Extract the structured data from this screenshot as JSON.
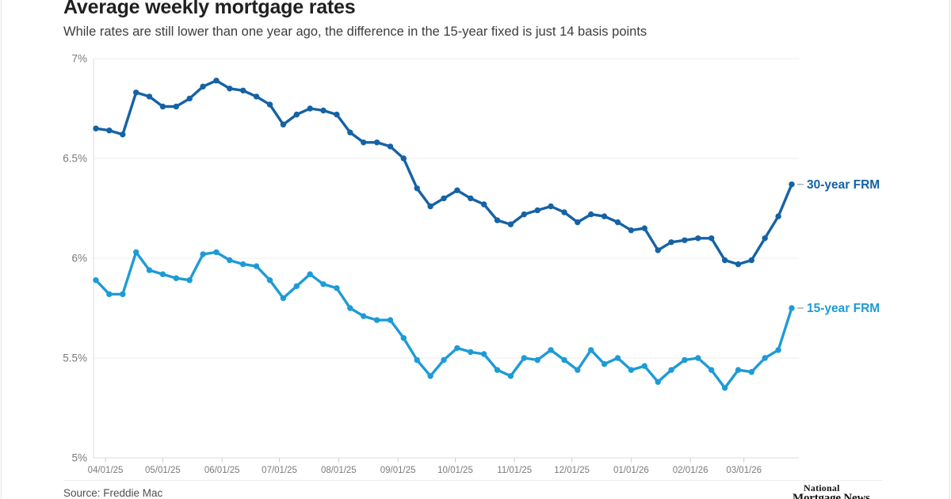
{
  "header": {
    "title": "Average weekly mortgage rates",
    "subtitle": "While rates are still lower than one year ago, the difference in the 15-year fixed is just 14 basis points"
  },
  "footer": {
    "source": "Source: Freddie Mac",
    "logo_line1": "National",
    "logo_line2": "Mortgage News"
  },
  "chart_data": {
    "type": "line",
    "title": "Average weekly mortgage rates",
    "xlabel": "",
    "ylabel": "",
    "ylim": [
      5,
      7
    ],
    "grid": true,
    "legend_position": "end-of-line",
    "y_ticks": [
      7,
      6.5,
      6,
      5.5,
      5
    ],
    "y_tick_labels": [
      "7%",
      "6.5%",
      "6%",
      "5.5%",
      "5%"
    ],
    "x_tick_labels": [
      "04/01/25",
      "05/01/25",
      "06/01/25",
      "07/01/25",
      "08/01/25",
      "09/01/25",
      "10/01/25",
      "11/01/25",
      "12/01/25",
      "01/01/26",
      "02/01/26",
      "03/01/26"
    ],
    "x_tick_days": [
      5,
      35,
      66,
      96,
      127,
      158,
      188,
      219,
      249,
      280,
      311,
      339
    ],
    "series": [
      {
        "name": "30-year FRM",
        "color": "#1562a5",
        "values": [
          6.65,
          6.64,
          6.62,
          6.83,
          6.81,
          6.76,
          6.76,
          6.8,
          6.86,
          6.89,
          6.85,
          6.84,
          6.81,
          6.77,
          6.67,
          6.72,
          6.75,
          6.74,
          6.72,
          6.63,
          6.58,
          6.58,
          6.56,
          6.5,
          6.35,
          6.26,
          6.3,
          6.34,
          6.3,
          6.27,
          6.19,
          6.17,
          6.22,
          6.24,
          6.26,
          6.23,
          6.18,
          6.22,
          6.21,
          6.18,
          6.14,
          6.15,
          6.04,
          6.08,
          6.09,
          6.1,
          6.1,
          5.99,
          5.97,
          5.99,
          6.1,
          6.21,
          6.37
        ]
      },
      {
        "name": "15-year FRM",
        "color": "#1e9bd6",
        "values": [
          5.89,
          5.82,
          5.82,
          6.03,
          5.94,
          5.92,
          5.9,
          5.89,
          6.02,
          6.03,
          5.99,
          5.97,
          5.96,
          5.89,
          5.8,
          5.86,
          5.92,
          5.87,
          5.85,
          5.75,
          5.71,
          5.69,
          5.69,
          5.6,
          5.49,
          5.41,
          5.49,
          5.55,
          5.53,
          5.52,
          5.44,
          5.41,
          5.5,
          5.49,
          5.54,
          5.49,
          5.44,
          5.54,
          5.47,
          5.5,
          5.44,
          5.46,
          5.38,
          5.44,
          5.49,
          5.5,
          5.44,
          5.35,
          5.44,
          5.43,
          5.5,
          5.54,
          5.75
        ]
      }
    ]
  }
}
